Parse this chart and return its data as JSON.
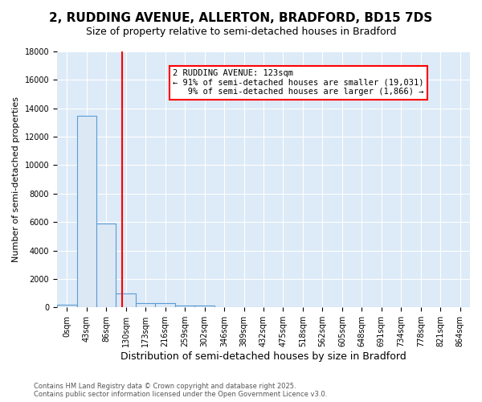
{
  "title": "2, RUDDING AVENUE, ALLERTON, BRADFORD, BD15 7DS",
  "subtitle": "Size of property relative to semi-detached houses in Bradford",
  "xlabel": "Distribution of semi-detached houses by size in Bradford",
  "ylabel": "Number of semi-detached properties",
  "footer_line1": "Contains HM Land Registry data © Crown copyright and database right 2025.",
  "footer_line2": "Contains public sector information licensed under the Open Government Licence v3.0.",
  "bin_labels": [
    "0sqm",
    "43sqm",
    "86sqm",
    "130sqm",
    "173sqm",
    "216sqm",
    "259sqm",
    "302sqm",
    "346sqm",
    "389sqm",
    "432sqm",
    "475sqm",
    "518sqm",
    "562sqm",
    "605sqm",
    "648sqm",
    "691sqm",
    "734sqm",
    "778sqm",
    "821sqm",
    "864sqm"
  ],
  "bar_values": [
    200,
    13500,
    5900,
    1000,
    300,
    300,
    150,
    150,
    0,
    0,
    0,
    0,
    0,
    0,
    0,
    0,
    0,
    0,
    0,
    0,
    0
  ],
  "bar_color": "#dce9f5",
  "bar_edge_color": "#5b9bd5",
  "red_line_x": 2.79,
  "annotation_text": "2 RUDDING AVENUE: 123sqm\n← 91% of semi-detached houses are smaller (19,031)\n   9% of semi-detached houses are larger (1,866) →",
  "annotation_box_color": "white",
  "annotation_box_edge_color": "red",
  "ylim": [
    0,
    18000
  ],
  "yticks": [
    0,
    2000,
    4000,
    6000,
    8000,
    10000,
    12000,
    14000,
    16000,
    18000
  ],
  "background_color": "#ddeaf7",
  "grid_color": "white",
  "title_fontsize": 11,
  "subtitle_fontsize": 9,
  "tick_fontsize": 7,
  "ylabel_fontsize": 8,
  "xlabel_fontsize": 9
}
